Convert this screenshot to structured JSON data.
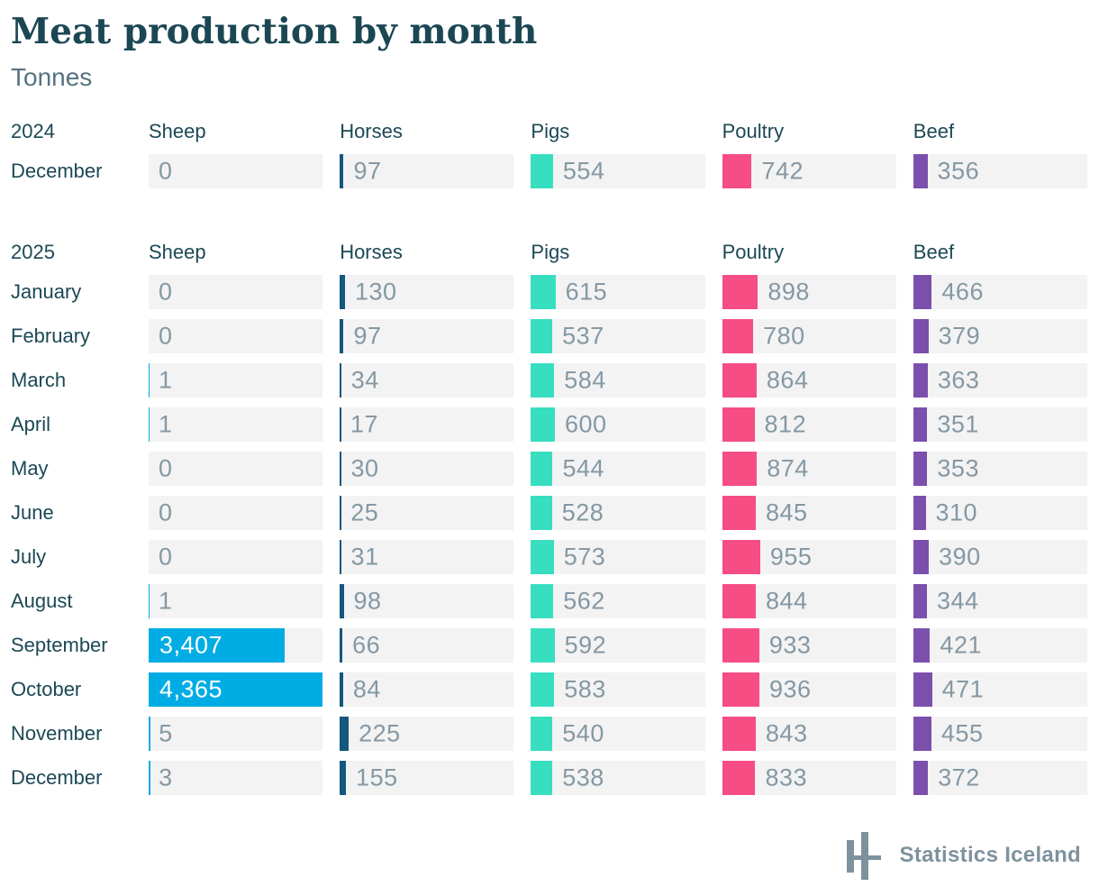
{
  "page": {
    "title": "Meat production by month",
    "subtitle": "Tonnes"
  },
  "chart_data": {
    "type": "bar",
    "title": "Meat production by month",
    "unit": "Tonnes",
    "orientation": "horizontal",
    "scale_max": 4365,
    "grid": false,
    "categories": [
      "Sheep",
      "Horses",
      "Pigs",
      "Poultry",
      "Beef"
    ],
    "colors": {
      "Sheep": "#00ace4",
      "Horses": "#15577e",
      "Pigs": "#38dec0",
      "Poultry": "#f64d84",
      "Beef": "#7b50ac"
    },
    "sections": [
      {
        "year": "2024",
        "rows": [
          {
            "month": "December",
            "values": [
              0,
              97,
              554,
              742,
              356
            ]
          }
        ]
      },
      {
        "year": "2025",
        "rows": [
          {
            "month": "January",
            "values": [
              0,
              130,
              615,
              898,
              466
            ]
          },
          {
            "month": "February",
            "values": [
              0,
              97,
              537,
              780,
              379
            ]
          },
          {
            "month": "March",
            "values": [
              1,
              34,
              584,
              864,
              363
            ]
          },
          {
            "month": "April",
            "values": [
              1,
              17,
              600,
              812,
              351
            ]
          },
          {
            "month": "May",
            "values": [
              0,
              30,
              544,
              874,
              353
            ]
          },
          {
            "month": "June",
            "values": [
              0,
              25,
              528,
              845,
              310
            ]
          },
          {
            "month": "July",
            "values": [
              0,
              31,
              573,
              955,
              390
            ]
          },
          {
            "month": "August",
            "values": [
              1,
              98,
              562,
              844,
              344
            ]
          },
          {
            "month": "September",
            "values": [
              3407,
              66,
              592,
              933,
              421
            ]
          },
          {
            "month": "October",
            "values": [
              4365,
              84,
              583,
              936,
              471
            ]
          },
          {
            "month": "November",
            "values": [
              5,
              225,
              540,
              843,
              455
            ]
          },
          {
            "month": "December",
            "values": [
              3,
              155,
              538,
              833,
              372
            ]
          }
        ]
      }
    ]
  },
  "style": {
    "cell_background": "#f3f3f4",
    "value_text_color": "#8598a3",
    "heading_color": "#1c4855",
    "logo_color": "#7e929d"
  },
  "footer": {
    "brand": "Statistics Iceland"
  }
}
